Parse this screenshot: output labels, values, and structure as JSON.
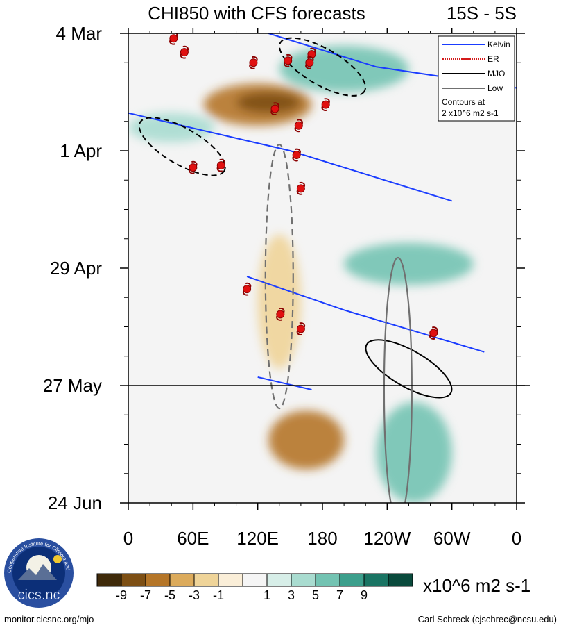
{
  "chart_data": {
    "type": "heatmap",
    "title": "CHI850 with CFS forecasts",
    "region": "15S - 5S",
    "x_tick_labels": [
      "0",
      "60E",
      "120E",
      "180",
      "120W",
      "60W",
      "0"
    ],
    "x_ticks_deg": [
      0,
      60,
      120,
      180,
      240,
      300,
      360
    ],
    "xlim": [
      0,
      360
    ],
    "y_tick_labels": [
      "4 Mar",
      "1 Apr",
      "29 Apr",
      "27 May",
      "24 Jun"
    ],
    "y_ticks_day": [
      0,
      28,
      56,
      84,
      112
    ],
    "ylim_days": [
      0,
      112
    ],
    "forecast_start_label": "27 May",
    "forecast_start_day": 84,
    "colorbar": {
      "unit": "x10^6 m2 s-1",
      "tick_labels": [
        "-9",
        "-7",
        "-5",
        "-3",
        "-1",
        "1",
        "3",
        "5",
        "7",
        "9"
      ],
      "colors": [
        "#3f2a0a",
        "#7d4f14",
        "#b57628",
        "#dcab5c",
        "#efd499",
        "#faeed8",
        "#f5f5f5",
        "#d7eee8",
        "#a9dcd0",
        "#73c3b2",
        "#3c9f8c",
        "#1a7463",
        "#0a4a3c"
      ]
    },
    "legend": {
      "items": [
        {
          "label": "Kelvin",
          "color": "#1a3cff",
          "style": "solid"
        },
        {
          "label": "ER",
          "color": "#d41a1a",
          "style": "dotted"
        },
        {
          "label": "MJO",
          "color": "#000000",
          "style": "solid"
        },
        {
          "label": "Low",
          "color": "#707070",
          "style": "solid"
        }
      ],
      "note_line1": "Contours at",
      "note_line2": "2 x10^6 m2 s-1",
      "placement": "top-right"
    },
    "anomaly_blobs": [
      {
        "name": "dry-band-march",
        "lon": [
          70,
          170
        ],
        "day": [
          12,
          22
        ],
        "value": -6
      },
      {
        "name": "dry-core-march",
        "lon": [
          100,
          160
        ],
        "day": [
          14,
          19
        ],
        "value": -9
      },
      {
        "name": "dry-band-may",
        "lon": [
          120,
          160
        ],
        "day": [
          48,
          80
        ],
        "value": -3
      },
      {
        "name": "dry-forecast-june",
        "lon": [
          130,
          200
        ],
        "day": [
          90,
          104
        ],
        "value": -6
      },
      {
        "name": "wet-band-march",
        "lon": [
          140,
          260
        ],
        "day": [
          3,
          14
        ],
        "value": 6
      },
      {
        "name": "wet-band-april",
        "lon": [
          0,
          80
        ],
        "day": [
          19,
          26
        ],
        "value": 3
      },
      {
        "name": "wet-band-may",
        "lon": [
          200,
          320
        ],
        "day": [
          50,
          60
        ],
        "value": 5
      },
      {
        "name": "wet-forecast-june",
        "lon": [
          230,
          300
        ],
        "day": [
          88,
          112
        ],
        "value": 5
      }
    ],
    "kelvin_contours": [
      {
        "name": "kelvin-1",
        "path_lon_day": [
          [
            130,
            0
          ],
          [
            230,
            8
          ],
          [
            360,
            13
          ]
        ]
      },
      {
        "name": "kelvin-2",
        "path_lon_day": [
          [
            0,
            19
          ],
          [
            150,
            28
          ],
          [
            300,
            40
          ]
        ]
      },
      {
        "name": "kelvin-3",
        "path_lon_day": [
          [
            110,
            58
          ],
          [
            200,
            66
          ],
          [
            330,
            76
          ]
        ]
      },
      {
        "name": "kelvin-4",
        "path_lon_day": [
          [
            120,
            82
          ],
          [
            170,
            85
          ]
        ]
      }
    ],
    "mjo_contours": [
      {
        "name": "mjo-1",
        "center_lon_day": [
          180,
          8
        ],
        "sign": "negative"
      },
      {
        "name": "mjo-2",
        "center_lon_day": [
          50,
          27
        ],
        "sign": "negative"
      },
      {
        "name": "mjo-3",
        "center_lon_day": [
          260,
          80
        ],
        "sign": "positive"
      }
    ],
    "low_contours": [
      {
        "name": "low-1",
        "center_lon_day": [
          140,
          58
        ],
        "sign": "negative"
      },
      {
        "name": "low-2",
        "center_lon_day": [
          250,
          85
        ],
        "sign": "positive"
      }
    ],
    "tropical_cyclones_lon_day": [
      [
        42,
        1.2
      ],
      [
        52,
        4.5
      ],
      [
        116,
        7
      ],
      [
        148,
        6.5
      ],
      [
        170,
        5
      ],
      [
        168,
        7
      ],
      [
        136,
        18
      ],
      [
        183,
        17
      ],
      [
        158,
        22
      ],
      [
        156,
        29
      ],
      [
        60,
        32
      ],
      [
        86,
        31.5
      ],
      [
        160,
        37
      ],
      [
        110,
        61
      ],
      [
        141,
        67
      ],
      [
        160,
        70.5
      ],
      [
        283,
        71.5
      ]
    ],
    "credits": {
      "left": "monitor.cicsnc.org/mjo",
      "right": "Carl Schreck (cjschrec@ncsu.edu)",
      "logo_text": "cics.nc",
      "logo_ring_text": "Cooperative Institute for Climate and Satellites"
    }
  }
}
